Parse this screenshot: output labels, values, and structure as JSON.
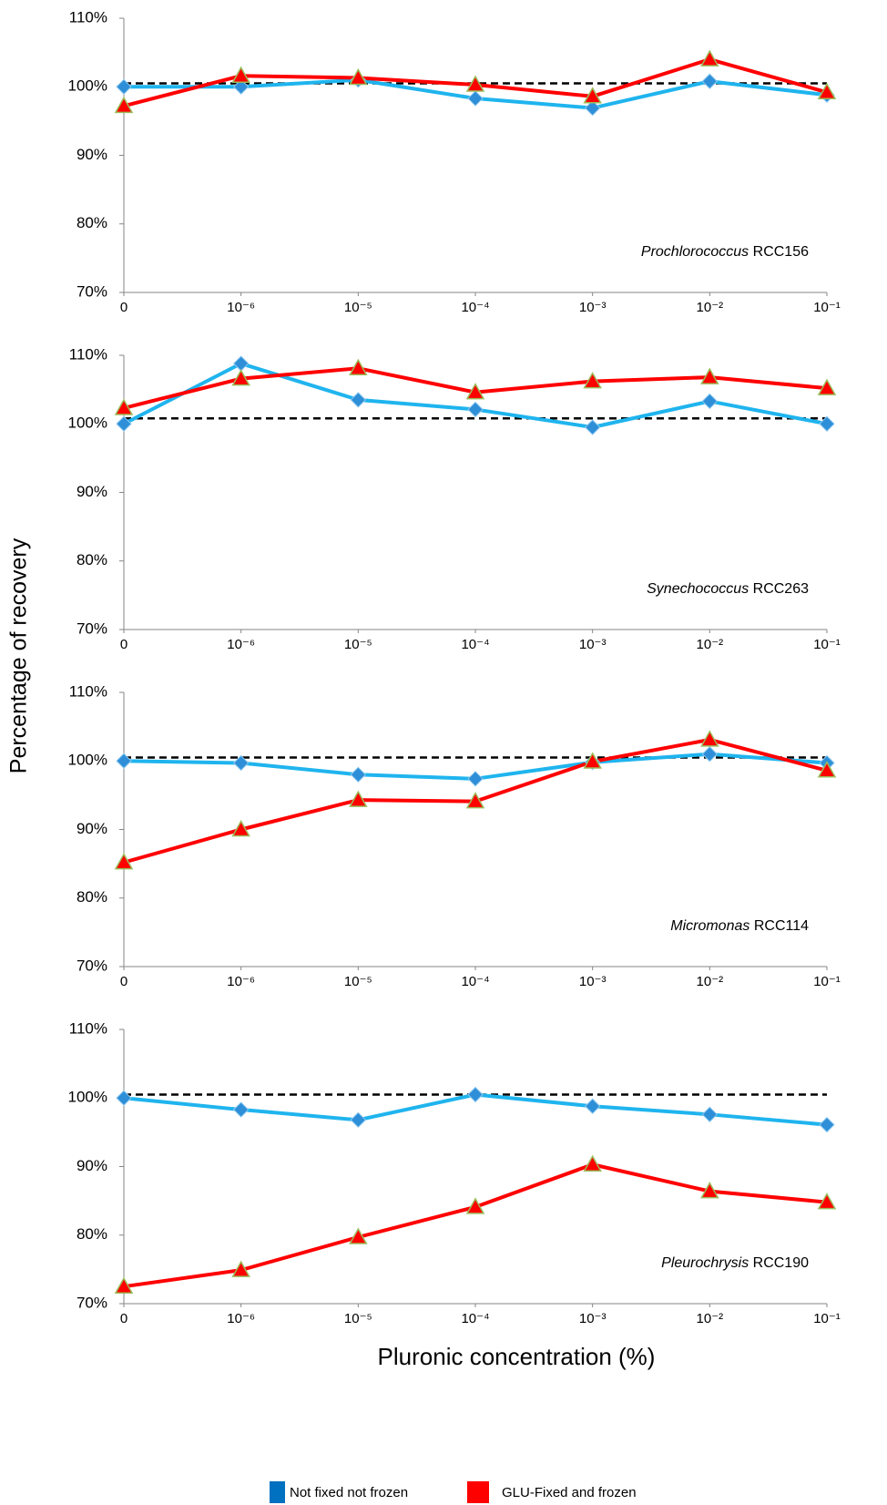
{
  "figure": {
    "ylabel": "Percentage of recovery",
    "xlabel": "Pluronic concentration (%)"
  },
  "chart_data": [
    {
      "type": "line",
      "annotation": {
        "species": "Prochlorococcus",
        "strain": "RCC156"
      },
      "categories": [
        "0",
        "10⁻⁶",
        "10⁻⁵",
        "10⁻⁴",
        "10⁻³",
        "10⁻²",
        "10⁻¹"
      ],
      "ylim": [
        70,
        110
      ],
      "yticks": [
        {
          "value": 70,
          "label": "70%"
        },
        {
          "value": 80,
          "label": "80%"
        },
        {
          "value": 90,
          "label": "90%"
        },
        {
          "value": 100,
          "label": "100%"
        },
        {
          "value": 110,
          "label": "110%"
        }
      ],
      "reference_line": 100.5,
      "series": [
        {
          "name": "Not fixed not frozen",
          "color": "#1fb4ee",
          "marker": "diamond",
          "marker_color": "#2e8fd8",
          "values": [
            100,
            100,
            101,
            98.3,
            96.9,
            100.8,
            98.8
          ]
        },
        {
          "name": "GLU-Fixed and frozen",
          "color": "#ff0000",
          "marker": "triangle",
          "marker_color": "#ff0000",
          "values": [
            97.2,
            101.6,
            101.3,
            100.3,
            98.6,
            104,
            99.2
          ]
        }
      ]
    },
    {
      "type": "line",
      "annotation": {
        "species": "Synechococcus",
        "strain": "RCC263"
      },
      "categories": [
        "0",
        "10⁻⁶",
        "10⁻⁵",
        "10⁻⁴",
        "10⁻³",
        "10⁻²",
        "10⁻¹"
      ],
      "ylim": [
        70,
        110
      ],
      "yticks": [
        {
          "value": 70,
          "label": "70%"
        },
        {
          "value": 80,
          "label": "80%"
        },
        {
          "value": 90,
          "label": "90%"
        },
        {
          "value": 100,
          "label": "100%"
        },
        {
          "value": 110,
          "label": "110%"
        }
      ],
      "reference_line": 100.8,
      "series": [
        {
          "name": "Not fixed not frozen",
          "color": "#1fb4ee",
          "marker": "diamond",
          "marker_color": "#2e8fd8",
          "values": [
            100,
            108.8,
            103.5,
            102.1,
            99.5,
            103.3,
            100
          ]
        },
        {
          "name": "GLU-Fixed and frozen",
          "color": "#ff0000",
          "marker": "triangle",
          "marker_color": "#ff0000",
          "values": [
            102.3,
            106.6,
            108.1,
            104.6,
            106.2,
            106.8,
            105.2
          ]
        }
      ]
    },
    {
      "type": "line",
      "annotation": {
        "species": "Micromonas",
        "strain": "RCC114"
      },
      "categories": [
        "0",
        "10⁻⁶",
        "10⁻⁵",
        "10⁻⁴",
        "10⁻³",
        "10⁻²",
        "10⁻¹"
      ],
      "ylim": [
        70,
        110
      ],
      "yticks": [
        {
          "value": 70,
          "label": "70%"
        },
        {
          "value": 80,
          "label": "80%"
        },
        {
          "value": 90,
          "label": "90%"
        },
        {
          "value": 100,
          "label": "100%"
        },
        {
          "value": 110,
          "label": "110%"
        }
      ],
      "reference_line": 100.5,
      "series": [
        {
          "name": "Not fixed not frozen",
          "color": "#1fb4ee",
          "marker": "diamond",
          "marker_color": "#2e8fd8",
          "values": [
            100,
            99.7,
            98,
            97.4,
            99.8,
            101,
            99.7
          ]
        },
        {
          "name": "GLU-Fixed and frozen",
          "color": "#ff0000",
          "marker": "triangle",
          "marker_color": "#ff0000",
          "values": [
            85.2,
            90,
            94.3,
            94.1,
            99.9,
            103.1,
            98.6
          ]
        }
      ]
    },
    {
      "type": "line",
      "annotation": {
        "species": "Pleurochrysis",
        "strain": "RCC190"
      },
      "categories": [
        "0",
        "10⁻⁶",
        "10⁻⁵",
        "10⁻⁴",
        "10⁻³",
        "10⁻²",
        "10⁻¹"
      ],
      "ylim": [
        70,
        110
      ],
      "yticks": [
        {
          "value": 70,
          "label": "70%"
        },
        {
          "value": 80,
          "label": "80%"
        },
        {
          "value": 90,
          "label": "90%"
        },
        {
          "value": 100,
          "label": "100%"
        },
        {
          "value": 110,
          "label": "110%"
        }
      ],
      "reference_line": 100.5,
      "series": [
        {
          "name": "Not fixed not frozen",
          "color": "#1fb4ee",
          "marker": "diamond",
          "marker_color": "#2e8fd8",
          "values": [
            100,
            98.3,
            96.8,
            100.5,
            98.8,
            97.6,
            96.1
          ]
        },
        {
          "name": "GLU-Fixed and frozen",
          "color": "#ff0000",
          "marker": "triangle",
          "marker_color": "#ff0000",
          "values": [
            72.5,
            74.9,
            79.7,
            84.1,
            90.3,
            86.4,
            84.8
          ]
        }
      ]
    }
  ]
}
